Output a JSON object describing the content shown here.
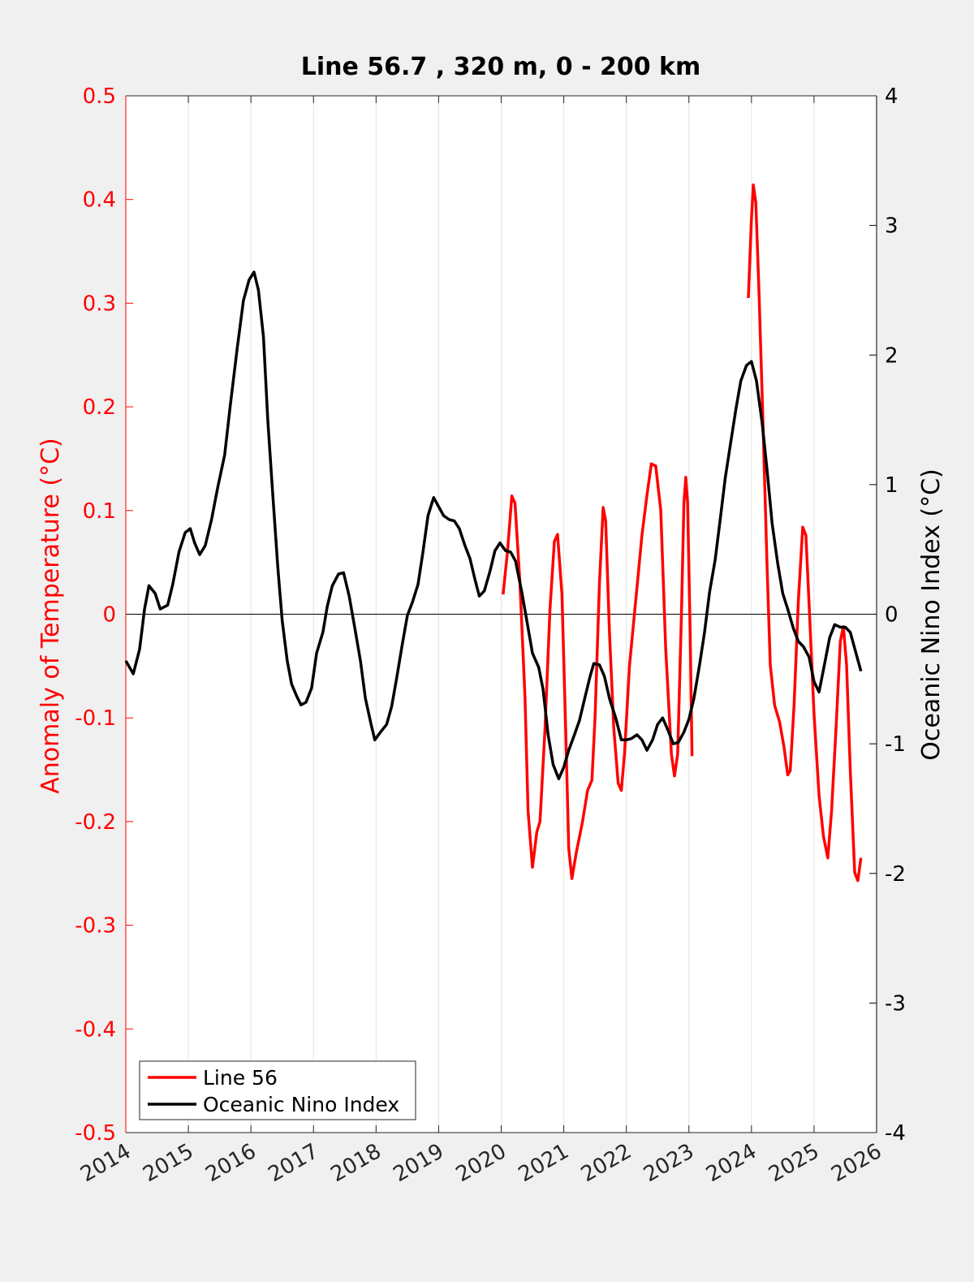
{
  "chart_data": {
    "type": "line",
    "title": "Line 56.7 , 320 m, 0 - 200 km",
    "y_label": "Anomaly of Temperature (°C)",
    "y2_label": "Oceanic Nino Index (°C)",
    "xlim": [
      2014,
      2026
    ],
    "xticks": [
      2014,
      2015,
      2016,
      2017,
      2018,
      2019,
      2020,
      2021,
      2022,
      2023,
      2024,
      2025,
      2026
    ],
    "ylim": [
      -0.5,
      0.5
    ],
    "yticks": [
      -0.5,
      -0.4,
      -0.3,
      -0.2,
      -0.1,
      0,
      0.1,
      0.2,
      0.3,
      0.4,
      0.5
    ],
    "y2lim": [
      -4,
      4
    ],
    "y2ticks": [
      -4,
      -3,
      -2,
      -1,
      0,
      1,
      2,
      3,
      4
    ],
    "hline": 0,
    "grid": true,
    "legend": "lower left",
    "series": [
      {
        "name": "Line 56",
        "color": "#ff0000",
        "axis": "y",
        "x": [
          2020.03,
          2020.1,
          2020.17,
          2020.22,
          2020.3,
          2020.38,
          2020.43,
          2020.5,
          2020.57,
          2020.62,
          2020.7,
          2020.78,
          2020.85,
          2020.9,
          2020.97,
          2021.03,
          2021.08,
          2021.13,
          2021.2,
          2021.3,
          2021.38,
          2021.45,
          2021.5,
          2021.57,
          2021.63,
          2021.67,
          2021.73,
          2021.8,
          2021.87,
          2021.92,
          2021.97,
          2022.05,
          2022.15,
          2022.25,
          2022.33,
          2022.4,
          2022.47,
          2022.55,
          2022.63,
          2022.72,
          2022.77,
          2022.82,
          2022.88,
          2022.92,
          2022.95,
          2022.98,
          2023.02,
          2023.05,
          2023.5,
          2023.95,
          2024.0,
          2024.03,
          2024.07,
          2024.12,
          2024.18,
          2024.25,
          2024.3,
          2024.37,
          2024.45,
          2024.52,
          2024.58,
          2024.62,
          2024.68,
          2024.75,
          2024.82,
          2024.87,
          2024.93,
          2025.0,
          2025.08,
          2025.15,
          2025.22,
          2025.28,
          2025.35,
          2025.42,
          2025.47,
          2025.52,
          2025.58,
          2025.65,
          2025.7,
          2025.75
        ],
        "values": [
          0.019,
          0.06,
          0.114,
          0.107,
          0.03,
          -0.08,
          -0.19,
          -0.244,
          -0.21,
          -0.2,
          -0.11,
          0.005,
          0.07,
          0.077,
          0.02,
          -0.11,
          -0.226,
          -0.255,
          -0.23,
          -0.2,
          -0.17,
          -0.16,
          -0.1,
          0.029,
          0.103,
          0.09,
          -0.018,
          -0.11,
          -0.163,
          -0.17,
          -0.135,
          -0.05,
          0.013,
          0.076,
          0.115,
          0.145,
          0.143,
          0.1,
          -0.034,
          -0.135,
          -0.156,
          -0.135,
          -0.002,
          0.107,
          0.132,
          0.107,
          -0.018,
          -0.137,
          null,
          0.305,
          0.381,
          0.414,
          0.397,
          0.311,
          0.193,
          0.045,
          -0.049,
          -0.088,
          -0.104,
          -0.128,
          -0.155,
          -0.151,
          -0.088,
          0.013,
          0.084,
          0.076,
          -0.002,
          -0.096,
          -0.175,
          -0.214,
          -0.235,
          -0.19,
          -0.112,
          -0.026,
          -0.012,
          -0.049,
          -0.151,
          -0.249,
          -0.257,
          -0.235
        ]
      },
      {
        "name": "Oceanic Nino Index",
        "color": "#000000",
        "axis": "y2",
        "x": [
          2014.0,
          2014.12,
          2014.22,
          2014.3,
          2014.37,
          2014.47,
          2014.55,
          2014.67,
          2014.75,
          2014.85,
          2014.95,
          2015.03,
          2015.1,
          2015.18,
          2015.27,
          2015.37,
          2015.47,
          2015.58,
          2015.67,
          2015.78,
          2015.88,
          2015.97,
          2016.05,
          2016.12,
          2016.2,
          2016.27,
          2016.35,
          2016.43,
          2016.5,
          2016.58,
          2016.65,
          2016.73,
          2016.8,
          2016.88,
          2016.97,
          2017.05,
          2017.15,
          2017.22,
          2017.3,
          2017.4,
          2017.48,
          2017.57,
          2017.65,
          2017.75,
          2017.83,
          2017.92,
          2017.98,
          2018.07,
          2018.17,
          2018.25,
          2018.33,
          2018.42,
          2018.5,
          2018.58,
          2018.67,
          2018.75,
          2018.83,
          2018.92,
          2019.0,
          2019.08,
          2019.17,
          2019.25,
          2019.33,
          2019.42,
          2019.5,
          2019.58,
          2019.65,
          2019.73,
          2019.82,
          2019.9,
          2019.98,
          2020.07,
          2020.15,
          2020.23,
          2020.33,
          2020.42,
          2020.5,
          2020.6,
          2020.67,
          2020.75,
          2020.83,
          2020.92,
          2021.0,
          2021.08,
          2021.17,
          2021.25,
          2021.33,
          2021.42,
          2021.48,
          2021.57,
          2021.65,
          2021.73,
          2021.83,
          2021.92,
          2022.0,
          2022.08,
          2022.17,
          2022.25,
          2022.33,
          2022.42,
          2022.5,
          2022.58,
          2022.67,
          2022.75,
          2022.83,
          2022.92,
          2023.0,
          2023.08,
          2023.17,
          2023.25,
          2023.33,
          2023.42,
          2023.5,
          2023.58,
          2023.67,
          2023.75,
          2023.83,
          2023.92,
          2024.0,
          2024.08,
          2024.17,
          2024.25,
          2024.33,
          2024.42,
          2024.5,
          2024.58,
          2024.67,
          2024.75,
          2024.83,
          2024.92,
          2025.0,
          2025.08,
          2025.17,
          2025.25,
          2025.33,
          2025.42,
          2025.5,
          2025.58,
          2025.67,
          2025.75
        ],
        "values": [
          -0.36,
          -0.46,
          -0.27,
          0.04,
          0.22,
          0.16,
          0.04,
          0.07,
          0.23,
          0.48,
          0.63,
          0.66,
          0.55,
          0.46,
          0.53,
          0.73,
          0.98,
          1.23,
          1.61,
          2.05,
          2.42,
          2.58,
          2.64,
          2.5,
          2.14,
          1.49,
          0.92,
          0.36,
          -0.05,
          -0.36,
          -0.54,
          -0.63,
          -0.7,
          -0.68,
          -0.57,
          -0.3,
          -0.14,
          0.06,
          0.22,
          0.31,
          0.32,
          0.14,
          -0.08,
          -0.36,
          -0.65,
          -0.85,
          -0.97,
          -0.91,
          -0.85,
          -0.71,
          -0.49,
          -0.23,
          -0.01,
          0.09,
          0.23,
          0.48,
          0.76,
          0.9,
          0.83,
          0.76,
          0.73,
          0.72,
          0.66,
          0.53,
          0.43,
          0.27,
          0.14,
          0.18,
          0.33,
          0.49,
          0.55,
          0.49,
          0.48,
          0.41,
          0.17,
          -0.08,
          -0.3,
          -0.41,
          -0.58,
          -0.93,
          -1.16,
          -1.27,
          -1.18,
          -1.05,
          -0.93,
          -0.82,
          -0.66,
          -0.48,
          -0.38,
          -0.39,
          -0.48,
          -0.65,
          -0.8,
          -0.97,
          -0.97,
          -0.96,
          -0.93,
          -0.97,
          -1.05,
          -0.97,
          -0.85,
          -0.8,
          -0.9,
          -1.0,
          -0.99,
          -0.91,
          -0.81,
          -0.65,
          -0.39,
          -0.14,
          0.17,
          0.42,
          0.73,
          1.05,
          1.33,
          1.58,
          1.8,
          1.92,
          1.95,
          1.8,
          1.48,
          1.11,
          0.7,
          0.39,
          0.16,
          0.04,
          -0.11,
          -0.21,
          -0.25,
          -0.33,
          -0.52,
          -0.6,
          -0.38,
          -0.18,
          -0.08,
          -0.1,
          -0.1,
          -0.14,
          -0.3,
          -0.44
        ]
      }
    ]
  }
}
